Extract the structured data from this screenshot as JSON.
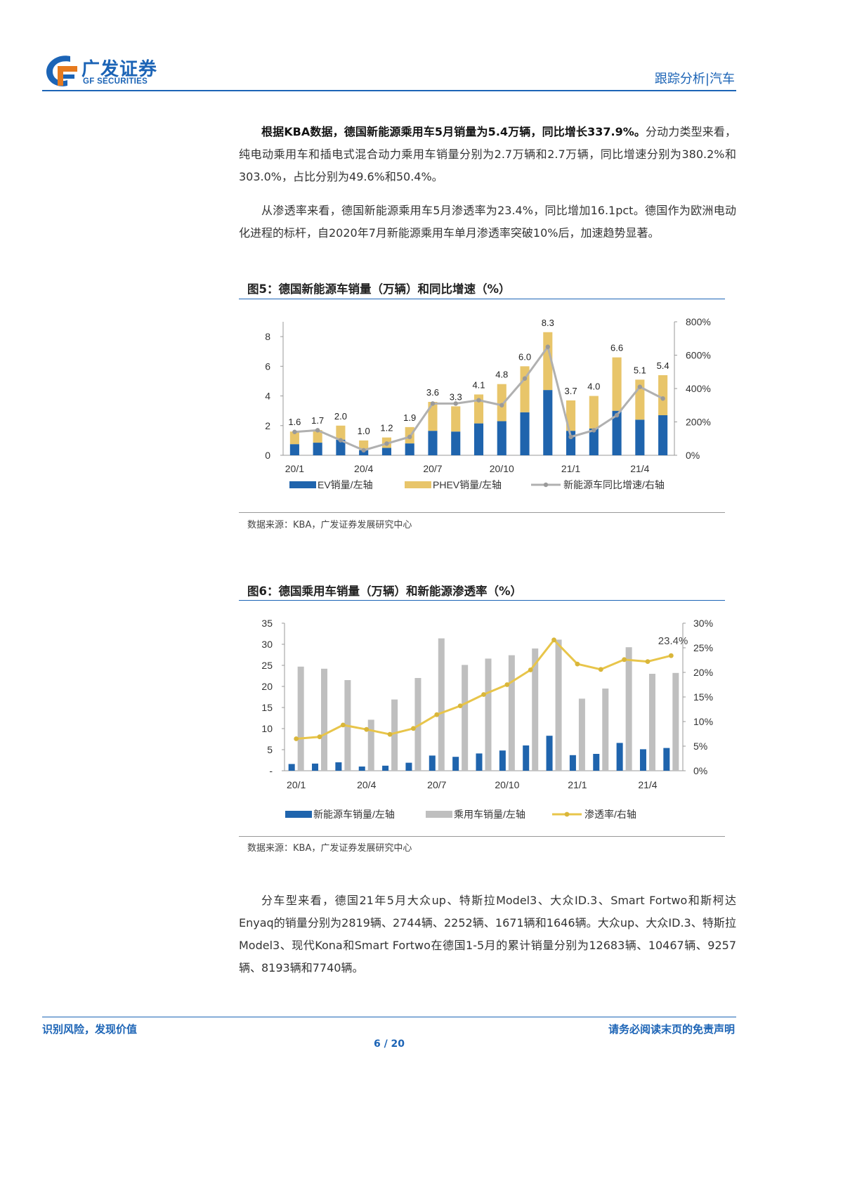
{
  "header": {
    "logo_cn": "广发证券",
    "logo_en": "GF SECURITIES",
    "section": "跟踪分析|汽车"
  },
  "paragraphs": {
    "p1_bold": "根据KBA数据，德国新能源乘用车5月销量为5.4万辆，同比增长337.9%。",
    "p1_rest": "分动力类型来看，纯电动乘用车和插电式混合动力乘用车销量分别为2.7万辆和2.7万辆，同比增速分别为380.2%和303.0%，占比分别为49.6%和50.4%。",
    "p2": "从渗透率来看，德国新能源乘用车5月渗透率为23.4%，同比增加16.1pct。德国作为欧洲电动化进程的标杆，自2020年7月新能源乘用车单月渗透率突破10%后，加速趋势显著。",
    "p3": "分车型来看，德国21年5月大众up、特斯拉Model3、大众ID.3、Smart Fortwo和斯柯达Enyaq的销量分别为2819辆、2744辆、2252辆、1671辆和1646辆。大众up、大众ID.3、特斯拉Model3、现代Kona和Smart Fortwo在德国1-5月的累计销量分别为12683辆、10467辆、9257辆、8193辆和7740辆。"
  },
  "fig5": {
    "title": "图5：德国新能源车销量（万辆）和同比增速（%）",
    "source": "数据来源：KBA，广发证券发展研究中心"
  },
  "fig6": {
    "title": "图6：德国乘用车销量（万辆）和新能源渗透率（%）",
    "source": "数据来源：KBA，广发证券发展研究中心"
  },
  "footer": {
    "left": "识别风险，发现价值",
    "right": "请务必阅读末页的免责声明",
    "page": "6 / 20"
  },
  "colors": {
    "brand": "#1c64b6",
    "ev": "#1f64ad",
    "phev": "#e8c56a",
    "yoy": "#b0b0b0",
    "pc": "#bfbfbf",
    "pen": "#e8c54a"
  },
  "chart_data": [
    {
      "type": "bar",
      "stacked": true,
      "categories": [
        "20/1",
        "20/2",
        "20/3",
        "20/4",
        "20/5",
        "20/6",
        "20/7",
        "20/8",
        "20/9",
        "20/10",
        "20/11",
        "20/12",
        "21/1",
        "21/2",
        "21/3",
        "21/4",
        "21/5"
      ],
      "tick_labels": [
        "20/1",
        "20/4",
        "20/7",
        "20/10",
        "21/1",
        "21/4"
      ],
      "series": [
        {
          "name": "EV销量/左轴",
          "values": [
            0.75,
            0.85,
            1.05,
            0.35,
            0.5,
            0.8,
            1.65,
            1.6,
            2.15,
            2.3,
            2.9,
            4.4,
            1.65,
            1.8,
            3.0,
            2.4,
            2.7
          ]
        },
        {
          "name": "PHEV销量/左轴",
          "values": [
            0.85,
            0.85,
            0.95,
            0.65,
            0.7,
            1.1,
            1.95,
            1.7,
            1.95,
            2.5,
            3.1,
            3.9,
            2.05,
            2.2,
            3.6,
            2.7,
            2.7
          ]
        },
        {
          "name": "新能源车同比增速/右轴",
          "axis": "right",
          "values": [
            140,
            150,
            90,
            30,
            70,
            110,
            310,
            310,
            330,
            300,
            460,
            650,
            110,
            150,
            240,
            410,
            340
          ]
        }
      ],
      "data_labels": [
        "1.6",
        "1.7",
        "2.0",
        "1.0",
        "1.2",
        "1.9",
        "3.6",
        "3.3",
        "4.1",
        "4.8",
        "6.0",
        "8.3",
        "3.7",
        "4.0",
        "6.6",
        "5.1",
        "5.4"
      ],
      "y_left_ticks": [
        "0",
        "2",
        "4",
        "6",
        "8"
      ],
      "y_right_ticks": [
        "0%",
        "200%",
        "400%",
        "600%",
        "800%"
      ],
      "ylim_left": [
        0,
        9
      ],
      "ylim_right": [
        0,
        800
      ]
    },
    {
      "type": "bar",
      "categories": [
        "20/1",
        "20/2",
        "20/3",
        "20/4",
        "20/5",
        "20/6",
        "20/7",
        "20/8",
        "20/9",
        "20/10",
        "20/11",
        "20/12",
        "21/1",
        "21/2",
        "21/3",
        "21/4",
        "21/5"
      ],
      "tick_labels": [
        "20/1",
        "20/4",
        "20/7",
        "20/10",
        "21/1",
        "21/4"
      ],
      "series": [
        {
          "name": "新能源车销量/左轴",
          "values": [
            1.6,
            1.7,
            2.0,
            1.0,
            1.2,
            1.9,
            3.6,
            3.3,
            4.1,
            4.8,
            6.0,
            8.3,
            3.7,
            4.0,
            6.6,
            5.1,
            5.4
          ]
        },
        {
          "name": "乘用车销量/左轴",
          "values": [
            24.7,
            24.2,
            21.5,
            12.1,
            16.9,
            22.0,
            31.4,
            25.1,
            26.6,
            27.4,
            29.0,
            31.1,
            17.1,
            19.5,
            29.3,
            23.0,
            23.2
          ]
        },
        {
          "name": "渗透率/右轴",
          "axis": "right",
          "values": [
            6.5,
            6.9,
            9.3,
            8.4,
            7.4,
            8.6,
            11.4,
            13.2,
            15.5,
            17.5,
            20.5,
            26.6,
            21.7,
            20.6,
            22.6,
            22.2,
            23.4
          ]
        }
      ],
      "annotation": "23.4%",
      "y_left_ticks": [
        "-",
        "5",
        "10",
        "15",
        "20",
        "25",
        "30",
        "35"
      ],
      "y_right_ticks": [
        "0%",
        "5%",
        "10%",
        "15%",
        "20%",
        "25%",
        "30%"
      ],
      "ylim_left": [
        0,
        35
      ],
      "ylim_right": [
        0,
        30
      ]
    }
  ]
}
